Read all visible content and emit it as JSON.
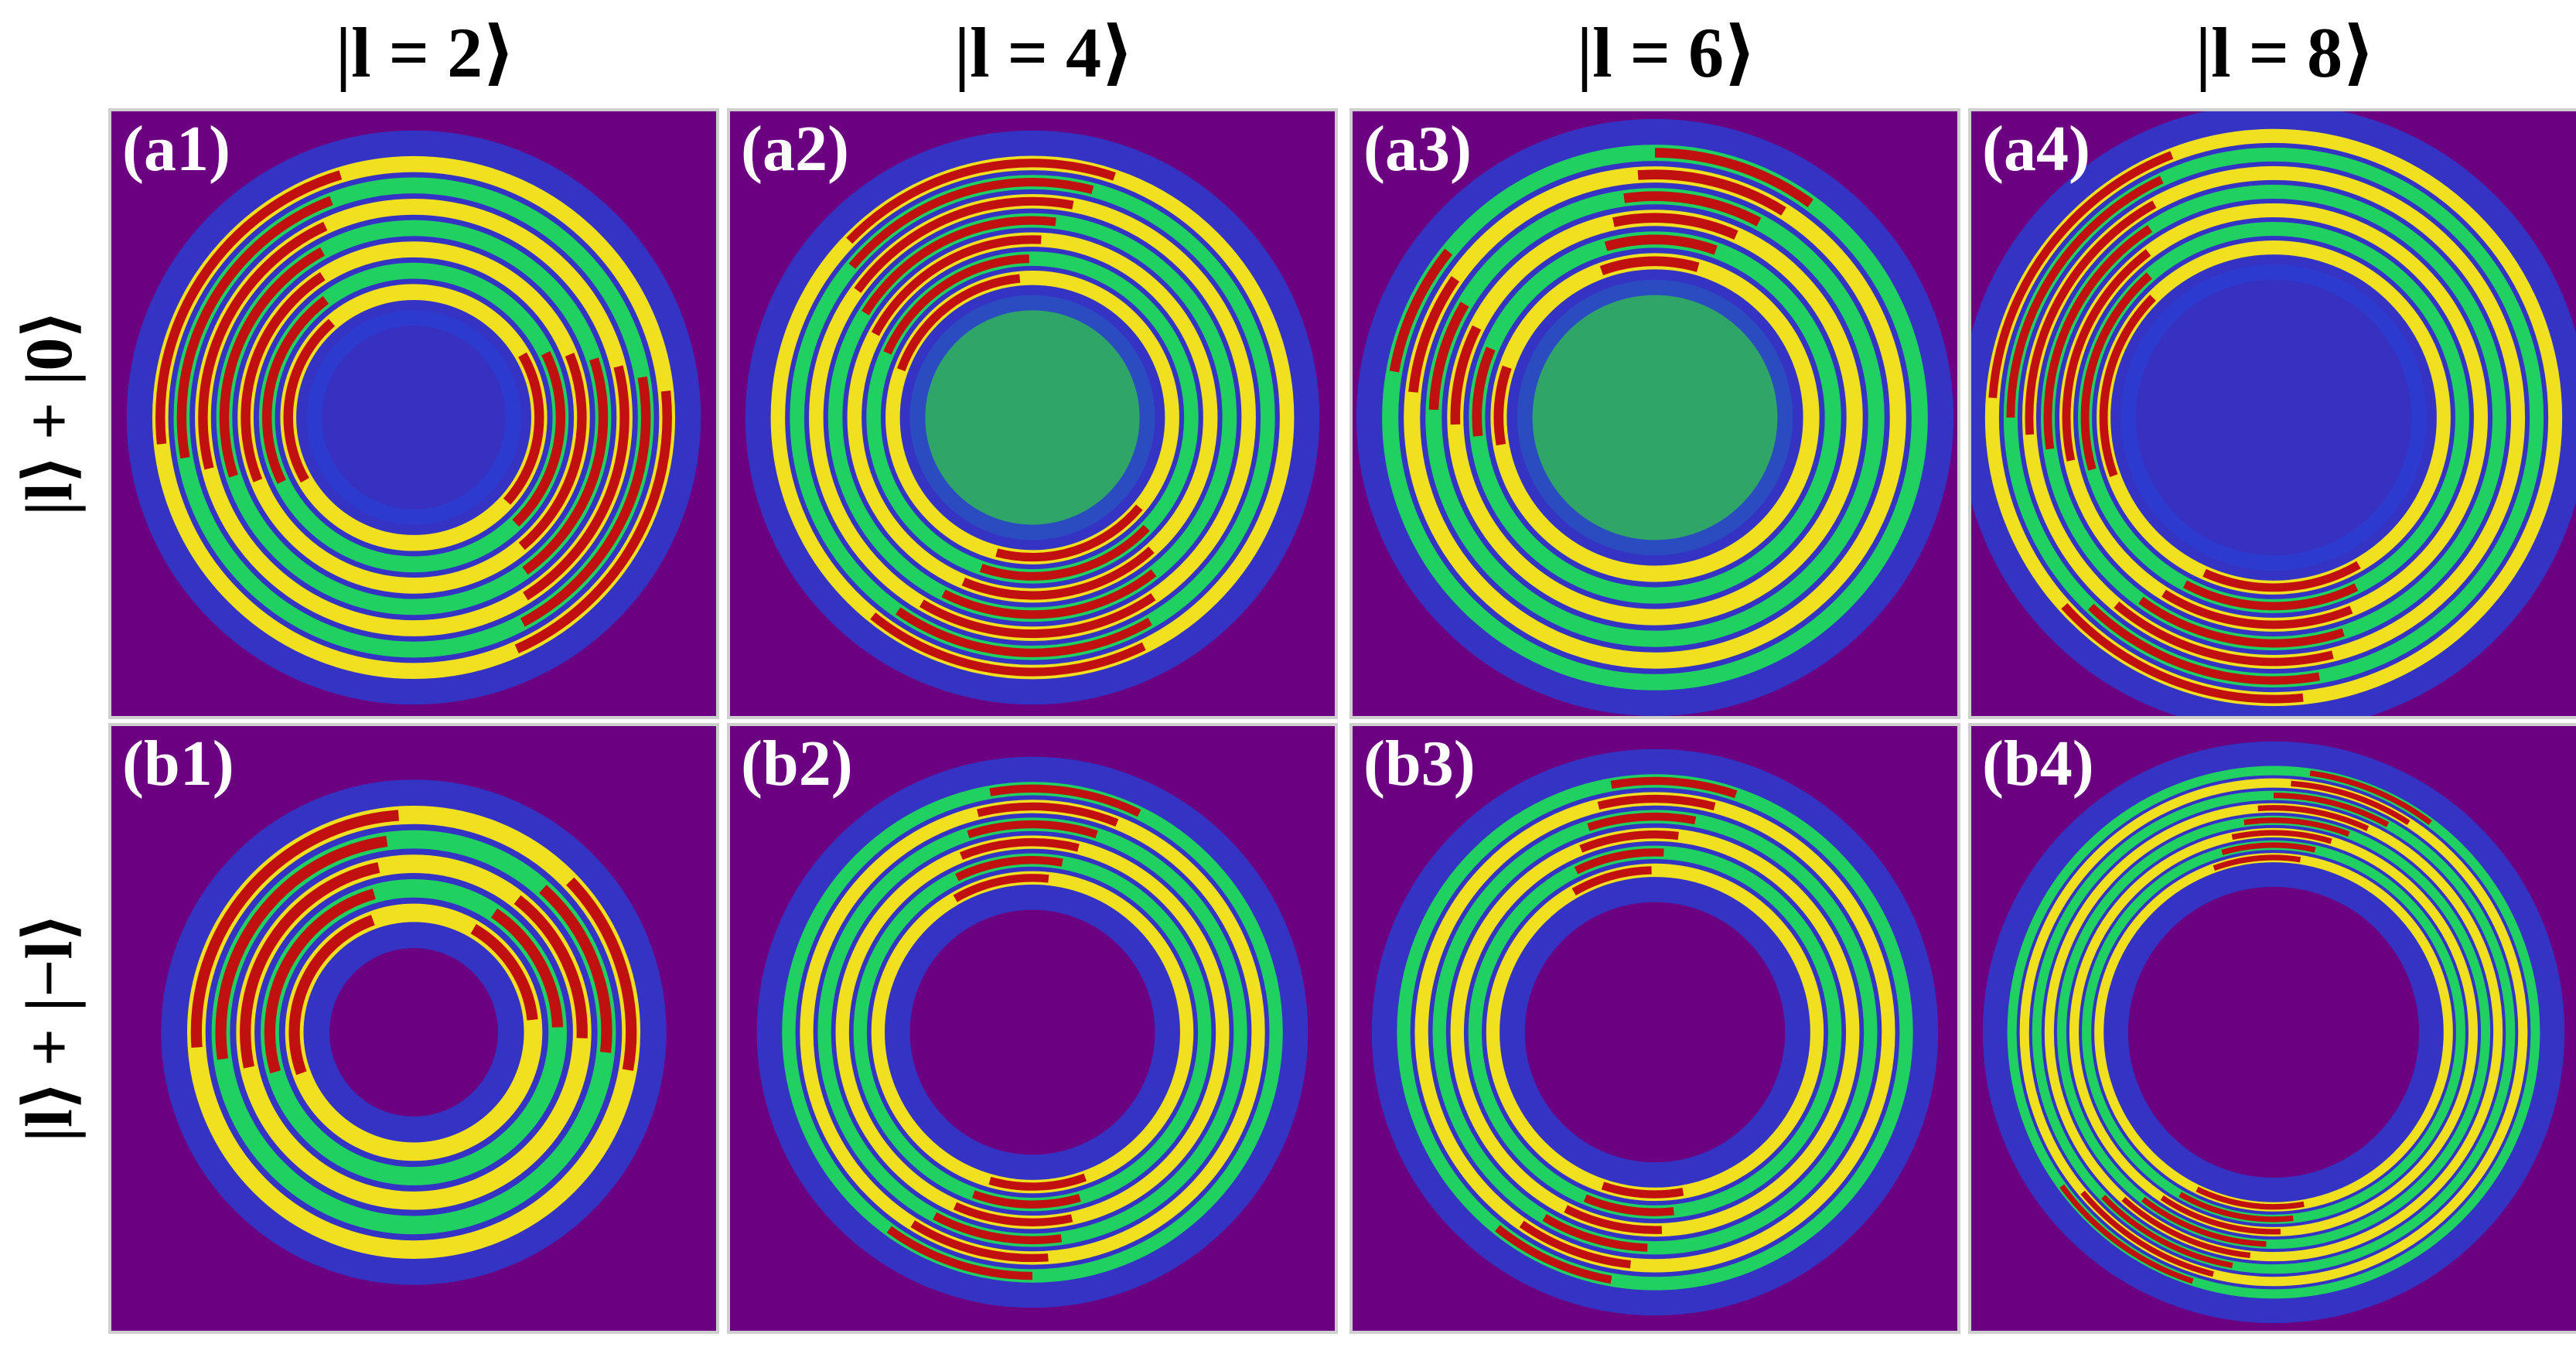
{
  "columns": [
    {
      "label": "|l = 2⟩"
    },
    {
      "label": "|l = 4⟩"
    },
    {
      "label": "|l = 6⟩"
    },
    {
      "label": "|l = 8⟩"
    }
  ],
  "rows": [
    {
      "label": "|l⟩ + |0⟩"
    },
    {
      "label": "|l⟩ + |−l⟩"
    }
  ],
  "panels": [
    {
      "tag": "(a1)"
    },
    {
      "tag": "(a2)"
    },
    {
      "tag": "(a3)"
    },
    {
      "tag": "(a4)"
    },
    {
      "tag": "(b1)"
    },
    {
      "tag": "(b2)"
    },
    {
      "tag": "(b3)"
    },
    {
      "tag": "(b4)"
    }
  ],
  "colors": {
    "background": "#6b0080",
    "low": "#2a3cd0",
    "mid": "#20d060",
    "high": "#f0e020",
    "peak": "#c01010"
  }
}
